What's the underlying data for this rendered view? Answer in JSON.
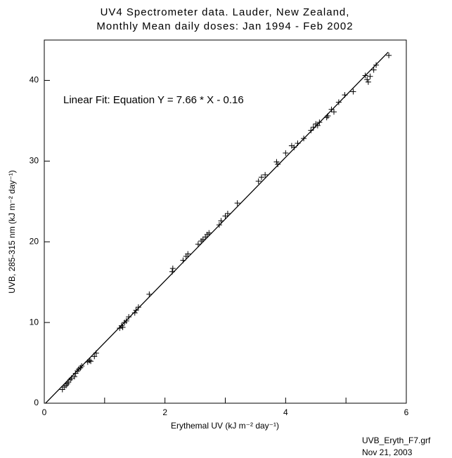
{
  "chart_data": {
    "type": "scatter",
    "title": [
      "UV4 Spectrometer data. Lauder, New Zealand,",
      "Monthly Mean daily doses: Jan 1994 - Feb 2002"
    ],
    "annotation": "Linear Fit: Equation Y = 7.66 * X - 0.16",
    "x_label": "Erythemal UV (kJ m⁻² day⁻¹)",
    "y_label": "UVB, 285-315 nm (kJ m⁻² day⁻¹)",
    "footer": [
      "UVB_Eryth_F7.grf",
      "Nov 21, 2003"
    ],
    "xlim": [
      0,
      6
    ],
    "ylim": [
      0,
      45
    ],
    "xticks": [
      0,
      2,
      4,
      6
    ],
    "x_minor_ticks": [
      1,
      3,
      5
    ],
    "yticks": [
      0,
      10,
      20,
      30,
      40
    ],
    "color": "#000000",
    "fit": {
      "slope": 7.66,
      "intercept": -0.16,
      "xrange": [
        0,
        5.7
      ]
    },
    "x": [
      0.3,
      0.33,
      0.36,
      0.38,
      0.4,
      0.43,
      0.45,
      0.5,
      0.52,
      0.55,
      0.57,
      0.6,
      0.62,
      0.72,
      0.75,
      0.77,
      0.83,
      0.86,
      1.25,
      1.28,
      1.3,
      1.33,
      1.36,
      1.4,
      1.5,
      1.52,
      1.56,
      1.74,
      2.12,
      2.13,
      2.3,
      2.35,
      2.38,
      2.55,
      2.6,
      2.63,
      2.67,
      2.7,
      2.73,
      2.9,
      2.93,
      3.0,
      3.04,
      3.2,
      3.55,
      3.6,
      3.66,
      3.85,
      3.87,
      4.0,
      4.1,
      4.14,
      4.2,
      4.3,
      4.42,
      4.46,
      4.5,
      4.53,
      4.56,
      4.68,
      4.7,
      4.76,
      4.8,
      4.88,
      4.98,
      5.12,
      5.32,
      5.35,
      5.37,
      5.4,
      5.46,
      5.5,
      5.71
    ],
    "values": [
      1.7,
      2.0,
      2.2,
      2.4,
      2.6,
      2.9,
      3.1,
      3.3,
      3.7,
      4.0,
      4.2,
      4.4,
      4.6,
      5.1,
      5.3,
      5.2,
      5.8,
      6.2,
      9.3,
      9.6,
      9.4,
      10.0,
      10.2,
      10.7,
      11.2,
      11.5,
      11.9,
      13.5,
      16.3,
      16.7,
      17.7,
      18.2,
      18.5,
      19.7,
      20.1,
      20.3,
      20.6,
      20.9,
      21.1,
      22.1,
      22.6,
      23.2,
      23.5,
      24.8,
      27.5,
      28.0,
      28.3,
      29.9,
      29.6,
      31.0,
      31.9,
      31.7,
      32.2,
      32.8,
      33.8,
      34.2,
      34.6,
      34.4,
      34.8,
      35.4,
      35.6,
      36.4,
      36.1,
      37.3,
      38.2,
      38.6,
      40.6,
      40.1,
      39.8,
      40.5,
      41.3,
      41.9,
      43.1
    ]
  }
}
